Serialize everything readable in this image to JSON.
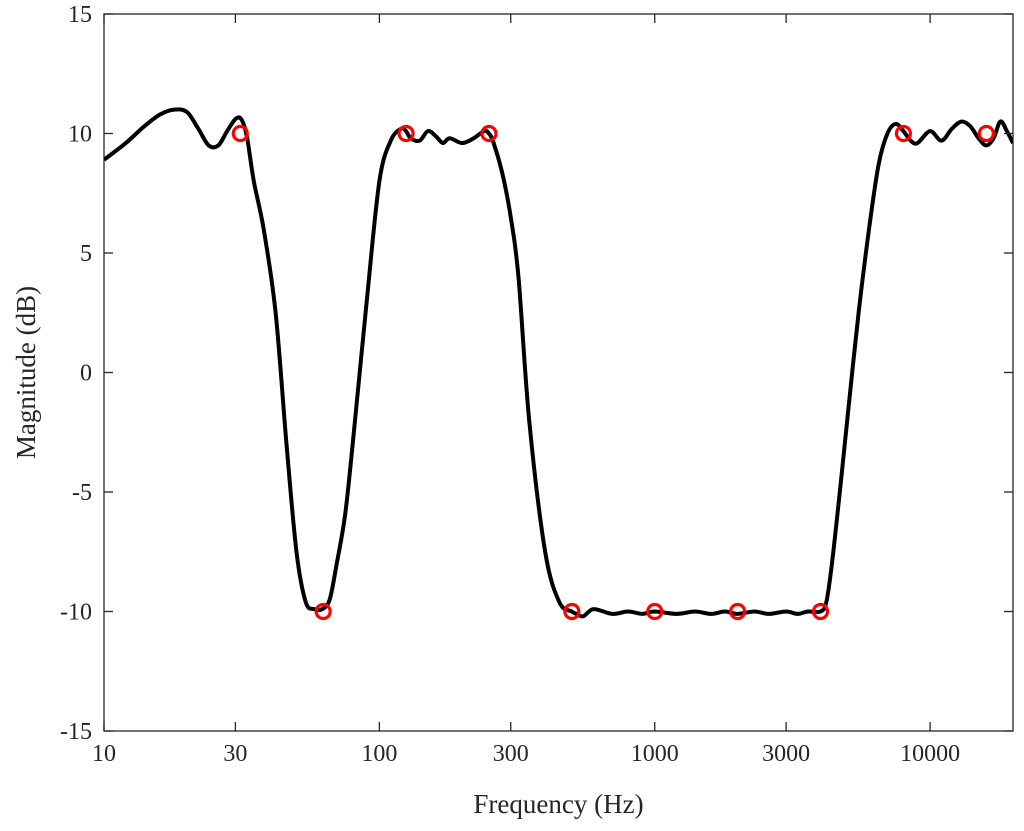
{
  "chart_data": {
    "type": "line",
    "title": "",
    "xlabel": "Frequency (Hz)",
    "ylabel": "Magnitude (dB)",
    "xscale": "log",
    "xlim": [
      10,
      20000
    ],
    "ylim": [
      -15,
      15
    ],
    "xticks": [
      10,
      30,
      100,
      300,
      1000,
      3000,
      10000
    ],
    "xtick_labels": [
      "10",
      "30",
      "100",
      "300",
      "1000",
      "3000",
      "10000"
    ],
    "yticks": [
      15,
      10,
      5,
      0,
      -5,
      -10,
      -15
    ],
    "ytick_labels": [
      "15",
      "10",
      "5",
      "0",
      "-5",
      "-10",
      "-15"
    ],
    "grid": false,
    "legend": "none",
    "colors": {
      "curve": "#000000",
      "markers": "#ff0000",
      "axes": "#262626"
    },
    "series": [
      {
        "style": "line",
        "x": [
          10,
          12,
          14,
          16,
          18,
          20,
          22,
          24,
          26,
          28,
          30,
          31.5,
          33,
          35,
          38,
          42,
          46,
          50,
          54,
          58,
          62,
          66,
          70,
          75,
          80,
          90,
          100,
          110,
          120,
          125,
          130,
          140,
          150,
          160,
          170,
          180,
          200,
          220,
          240,
          250,
          260,
          280,
          300,
          320,
          350,
          400,
          450,
          500,
          520,
          550,
          600,
          700,
          800,
          900,
          1000,
          1200,
          1400,
          1600,
          1800,
          2000,
          2300,
          2600,
          3000,
          3300,
          3600,
          4000,
          4200,
          4400,
          4700,
          5000,
          5500,
          6000,
          6500,
          7000,
          7500,
          8000,
          8500,
          9000,
          10000,
          11000,
          12000,
          13000,
          14000,
          15000,
          16000,
          17000,
          18000,
          19000,
          20000
        ],
        "y": [
          8.9,
          9.6,
          10.3,
          10.8,
          11.0,
          10.9,
          10.2,
          9.5,
          9.5,
          10.1,
          10.6,
          10.6,
          9.9,
          8.0,
          6.0,
          2.5,
          -3.0,
          -7.5,
          -9.6,
          -9.9,
          -9.9,
          -9.5,
          -8.0,
          -6.0,
          -3.0,
          3.0,
          8.0,
          9.7,
          10.2,
          10.1,
          9.8,
          9.7,
          10.1,
          9.9,
          9.6,
          9.8,
          9.6,
          9.8,
          10.1,
          10.0,
          9.6,
          8.3,
          6.5,
          4.0,
          -2.0,
          -7.5,
          -9.6,
          -10.0,
          -10.1,
          -10.2,
          -9.9,
          -10.1,
          -10.0,
          -10.1,
          -10.0,
          -10.1,
          -10.0,
          -10.1,
          -10.0,
          -10.1,
          -10.0,
          -10.1,
          -10.0,
          -10.1,
          -10.0,
          -10.0,
          -9.6,
          -8.0,
          -5.0,
          -2.0,
          2.5,
          6.0,
          8.7,
          10.0,
          10.4,
          10.1,
          9.7,
          9.6,
          10.1,
          9.7,
          10.2,
          10.5,
          10.3,
          9.8,
          9.5,
          9.8,
          10.5,
          10.1,
          9.6
        ]
      },
      {
        "style": "markers",
        "x": [
          31.25,
          62.5,
          125,
          250,
          500,
          1000,
          2000,
          4000,
          8000,
          16000
        ],
        "y": [
          10,
          -10,
          10,
          10,
          -10,
          -10,
          -10,
          -10,
          10,
          10
        ]
      }
    ]
  }
}
